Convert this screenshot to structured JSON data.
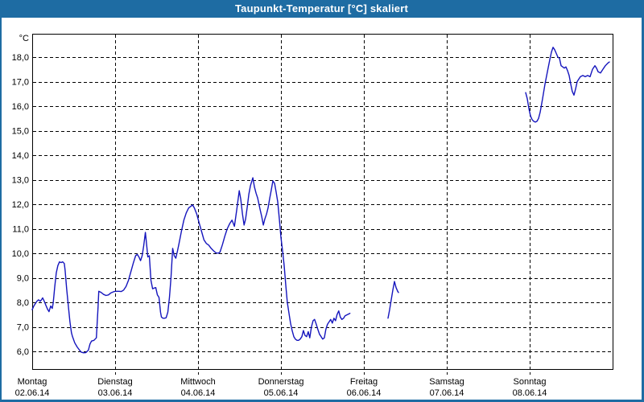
{
  "title": "Taupunkt-Temperatur [°C] skaliert",
  "colors": {
    "titlebar_bg": "#1e6ca3",
    "title_text": "#ffffff",
    "window_border": "#1e6ca3",
    "background": "#ffffff",
    "plot_border": "#000000",
    "grid": "#000000",
    "axis_text": "#000000",
    "line": "#1515bd"
  },
  "y_axis": {
    "unit_label": "°C",
    "ticks": [
      {
        "value": 18,
        "label": "18,0"
      },
      {
        "value": 17,
        "label": "17,0"
      },
      {
        "value": 16,
        "label": "16,0"
      },
      {
        "value": 15,
        "label": "15,0"
      },
      {
        "value": 14,
        "label": "14,0"
      },
      {
        "value": 13,
        "label": "13,0"
      },
      {
        "value": 12,
        "label": "12,0"
      },
      {
        "value": 11,
        "label": "11,0"
      },
      {
        "value": 10,
        "label": "10,0"
      },
      {
        "value": 9,
        "label": "9,0"
      },
      {
        "value": 8,
        "label": "8,0"
      },
      {
        "value": 7,
        "label": "7,0"
      },
      {
        "value": 6,
        "label": "6,0"
      }
    ]
  },
  "x_axis": {
    "days": [
      {
        "name": "Montag",
        "date": "02.06.14"
      },
      {
        "name": "Dienstag",
        "date": "03.06.14"
      },
      {
        "name": "Mittwoch",
        "date": "04.06.14"
      },
      {
        "name": "Donnerstag",
        "date": "05.06.14"
      },
      {
        "name": "Freitag",
        "date": "06.06.14"
      },
      {
        "name": "Samstag",
        "date": "07.06.14"
      },
      {
        "name": "Sonntag",
        "date": "08.06.14"
      }
    ]
  },
  "chart_data": {
    "type": "line",
    "title": "Taupunkt-Temperatur [°C] skaliert",
    "xlabel": "",
    "ylabel": "°C",
    "x_unit": "days since 02.06.14 00:00",
    "ylim_labeled": [
      6,
      18
    ],
    "grid": true,
    "legend": "none",
    "x_categories": [
      "Montag 02.06.14",
      "Dienstag 03.06.14",
      "Mittwoch 04.06.14",
      "Donnerstag 05.06.14",
      "Freitag 06.06.14",
      "Samstag 07.06.14",
      "Sonntag 08.06.14"
    ],
    "series": [
      {
        "name": "Taupunkt-Temperatur [°C]",
        "color": "#1515bd",
        "segments": [
          [
            [
              0.0,
              7.7
            ],
            [
              0.019,
              7.85
            ],
            [
              0.039,
              7.95
            ],
            [
              0.058,
              8.05
            ],
            [
              0.077,
              8.1
            ],
            [
              0.097,
              8.04
            ],
            [
              0.116,
              8.12
            ],
            [
              0.126,
              8.18
            ],
            [
              0.145,
              8.05
            ],
            [
              0.165,
              7.88
            ],
            [
              0.184,
              7.72
            ],
            [
              0.203,
              7.62
            ],
            [
              0.223,
              7.85
            ],
            [
              0.242,
              7.75
            ],
            [
              0.252,
              7.95
            ],
            [
              0.261,
              8.25
            ],
            [
              0.271,
              8.6
            ],
            [
              0.281,
              8.9
            ],
            [
              0.29,
              9.2
            ],
            [
              0.31,
              9.5
            ],
            [
              0.329,
              9.65
            ],
            [
              0.348,
              9.62
            ],
            [
              0.368,
              9.65
            ],
            [
              0.387,
              9.58
            ],
            [
              0.397,
              9.3
            ],
            [
              0.416,
              8.55
            ],
            [
              0.436,
              7.85
            ],
            [
              0.455,
              7.2
            ],
            [
              0.474,
              6.75
            ],
            [
              0.484,
              6.62
            ],
            [
              0.513,
              6.35
            ],
            [
              0.542,
              6.18
            ],
            [
              0.571,
              6.05
            ],
            [
              0.59,
              5.97
            ],
            [
              0.619,
              5.94
            ],
            [
              0.648,
              5.95
            ],
            [
              0.678,
              6.05
            ],
            [
              0.697,
              6.3
            ],
            [
              0.716,
              6.42
            ],
            [
              0.745,
              6.45
            ],
            [
              0.774,
              6.55
            ],
            [
              0.794,
              7.8
            ],
            [
              0.803,
              8.45
            ],
            [
              0.832,
              8.4
            ],
            [
              0.861,
              8.32
            ],
            [
              0.89,
              8.28
            ],
            [
              0.919,
              8.3
            ],
            [
              0.948,
              8.38
            ],
            [
              0.987,
              8.44
            ],
            [
              1.016,
              8.45
            ],
            [
              1.045,
              8.45
            ],
            [
              1.074,
              8.44
            ],
            [
              1.103,
              8.5
            ],
            [
              1.132,
              8.65
            ],
            [
              1.161,
              8.9
            ],
            [
              1.19,
              9.25
            ],
            [
              1.219,
              9.6
            ],
            [
              1.248,
              9.9
            ],
            [
              1.268,
              9.95
            ],
            [
              1.287,
              9.85
            ],
            [
              1.307,
              9.7
            ],
            [
              1.326,
              9.9
            ],
            [
              1.345,
              10.3
            ],
            [
              1.365,
              10.85
            ],
            [
              1.384,
              10.2
            ],
            [
              1.394,
              9.85
            ],
            [
              1.413,
              9.9
            ],
            [
              1.432,
              8.9
            ],
            [
              1.452,
              8.55
            ],
            [
              1.471,
              8.58
            ],
            [
              1.49,
              8.6
            ],
            [
              1.51,
              8.3
            ],
            [
              1.529,
              8.2
            ],
            [
              1.548,
              7.6
            ],
            [
              1.558,
              7.4
            ],
            [
              1.577,
              7.35
            ],
            [
              1.597,
              7.35
            ],
            [
              1.616,
              7.37
            ],
            [
              1.636,
              7.6
            ],
            [
              1.655,
              8.2
            ],
            [
              1.674,
              9.0
            ],
            [
              1.694,
              10.2
            ],
            [
              1.713,
              9.9
            ],
            [
              1.732,
              9.8
            ],
            [
              1.752,
              10.1
            ],
            [
              1.771,
              10.4
            ],
            [
              1.8,
              10.9
            ],
            [
              1.829,
              11.35
            ],
            [
              1.858,
              11.65
            ],
            [
              1.887,
              11.85
            ],
            [
              1.916,
              11.92
            ],
            [
              1.935,
              11.97
            ],
            [
              1.955,
              11.85
            ],
            [
              1.984,
              11.6
            ],
            [
              2.013,
              11.25
            ],
            [
              2.042,
              10.9
            ],
            [
              2.071,
              10.55
            ],
            [
              2.1,
              10.4
            ],
            [
              2.129,
              10.33
            ],
            [
              2.158,
              10.2
            ],
            [
              2.187,
              10.1
            ],
            [
              2.216,
              10.02
            ],
            [
              2.245,
              10.0
            ],
            [
              2.265,
              10.05
            ],
            [
              2.294,
              10.35
            ],
            [
              2.323,
              10.7
            ],
            [
              2.352,
              11.0
            ],
            [
              2.381,
              11.2
            ],
            [
              2.41,
              11.35
            ],
            [
              2.439,
              11.1
            ],
            [
              2.468,
              11.8
            ],
            [
              2.497,
              12.55
            ],
            [
              2.516,
              12.2
            ],
            [
              2.536,
              11.6
            ],
            [
              2.555,
              11.15
            ],
            [
              2.574,
              11.4
            ],
            [
              2.594,
              11.9
            ],
            [
              2.613,
              12.4
            ],
            [
              2.632,
              12.75
            ],
            [
              2.661,
              13.08
            ],
            [
              2.681,
              12.7
            ],
            [
              2.7,
              12.45
            ],
            [
              2.719,
              12.25
            ],
            [
              2.748,
              11.8
            ],
            [
              2.768,
              11.5
            ],
            [
              2.787,
              11.15
            ],
            [
              2.806,
              11.4
            ],
            [
              2.826,
              11.6
            ],
            [
              2.845,
              11.85
            ],
            [
              2.865,
              12.25
            ],
            [
              2.884,
              12.6
            ],
            [
              2.903,
              12.95
            ],
            [
              2.923,
              12.85
            ],
            [
              2.942,
              12.5
            ],
            [
              2.961,
              12.1
            ],
            [
              2.981,
              11.4
            ],
            [
              3.0,
              10.65
            ],
            [
              3.019,
              10.1
            ],
            [
              3.039,
              9.5
            ],
            [
              3.058,
              8.7
            ],
            [
              3.077,
              8.0
            ],
            [
              3.097,
              7.55
            ],
            [
              3.116,
              7.15
            ],
            [
              3.135,
              6.85
            ],
            [
              3.155,
              6.6
            ],
            [
              3.174,
              6.5
            ],
            [
              3.194,
              6.45
            ],
            [
              3.213,
              6.45
            ],
            [
              3.232,
              6.5
            ],
            [
              3.252,
              6.6
            ],
            [
              3.271,
              6.85
            ],
            [
              3.29,
              6.65
            ],
            [
              3.31,
              6.6
            ],
            [
              3.329,
              6.8
            ],
            [
              3.348,
              6.55
            ],
            [
              3.368,
              7.0
            ],
            [
              3.387,
              7.25
            ],
            [
              3.406,
              7.3
            ],
            [
              3.426,
              7.1
            ],
            [
              3.445,
              6.9
            ],
            [
              3.465,
              6.7
            ],
            [
              3.484,
              6.6
            ],
            [
              3.503,
              6.5
            ],
            [
              3.523,
              6.55
            ],
            [
              3.542,
              6.9
            ],
            [
              3.561,
              7.1
            ],
            [
              3.581,
              7.2
            ],
            [
              3.6,
              7.3
            ],
            [
              3.619,
              7.15
            ],
            [
              3.639,
              7.35
            ],
            [
              3.658,
              7.25
            ],
            [
              3.677,
              7.5
            ],
            [
              3.697,
              7.65
            ],
            [
              3.716,
              7.4
            ],
            [
              3.735,
              7.3
            ],
            [
              3.755,
              7.35
            ],
            [
              3.774,
              7.45
            ],
            [
              3.803,
              7.5
            ],
            [
              3.832,
              7.55
            ]
          ],
          [
            [
              4.291,
              7.35
            ],
            [
              4.311,
              7.7
            ],
            [
              4.33,
              8.1
            ],
            [
              4.35,
              8.5
            ],
            [
              4.369,
              8.85
            ],
            [
              4.388,
              8.6
            ],
            [
              4.408,
              8.45
            ],
            [
              4.417,
              8.4
            ]
          ],
          [
            [
              5.951,
              16.55
            ],
            [
              5.971,
              16.3
            ],
            [
              5.99,
              15.9
            ],
            [
              6.01,
              15.6
            ],
            [
              6.029,
              15.45
            ],
            [
              6.049,
              15.38
            ],
            [
              6.068,
              15.35
            ],
            [
              6.087,
              15.38
            ],
            [
              6.107,
              15.5
            ],
            [
              6.126,
              15.75
            ],
            [
              6.155,
              16.3
            ],
            [
              6.184,
              16.9
            ],
            [
              6.214,
              17.4
            ],
            [
              6.243,
              17.9
            ],
            [
              6.262,
              18.2
            ],
            [
              6.282,
              18.4
            ],
            [
              6.301,
              18.3
            ],
            [
              6.32,
              18.15
            ],
            [
              6.34,
              18.0
            ],
            [
              6.359,
              17.95
            ],
            [
              6.379,
              17.65
            ],
            [
              6.398,
              17.6
            ],
            [
              6.417,
              17.55
            ],
            [
              6.437,
              17.6
            ],
            [
              6.456,
              17.45
            ],
            [
              6.476,
              17.25
            ],
            [
              6.495,
              16.9
            ],
            [
              6.514,
              16.6
            ],
            [
              6.534,
              16.45
            ],
            [
              6.553,
              16.7
            ],
            [
              6.573,
              17.0
            ],
            [
              6.592,
              17.1
            ],
            [
              6.612,
              17.2
            ],
            [
              6.641,
              17.25
            ],
            [
              6.67,
              17.2
            ],
            [
              6.699,
              17.25
            ],
            [
              6.728,
              17.2
            ],
            [
              6.757,
              17.5
            ],
            [
              6.786,
              17.65
            ],
            [
              6.806,
              17.55
            ],
            [
              6.825,
              17.4
            ],
            [
              6.854,
              17.35
            ],
            [
              6.883,
              17.5
            ],
            [
              6.913,
              17.65
            ],
            [
              6.942,
              17.75
            ],
            [
              6.961,
              17.8
            ]
          ]
        ]
      }
    ]
  }
}
